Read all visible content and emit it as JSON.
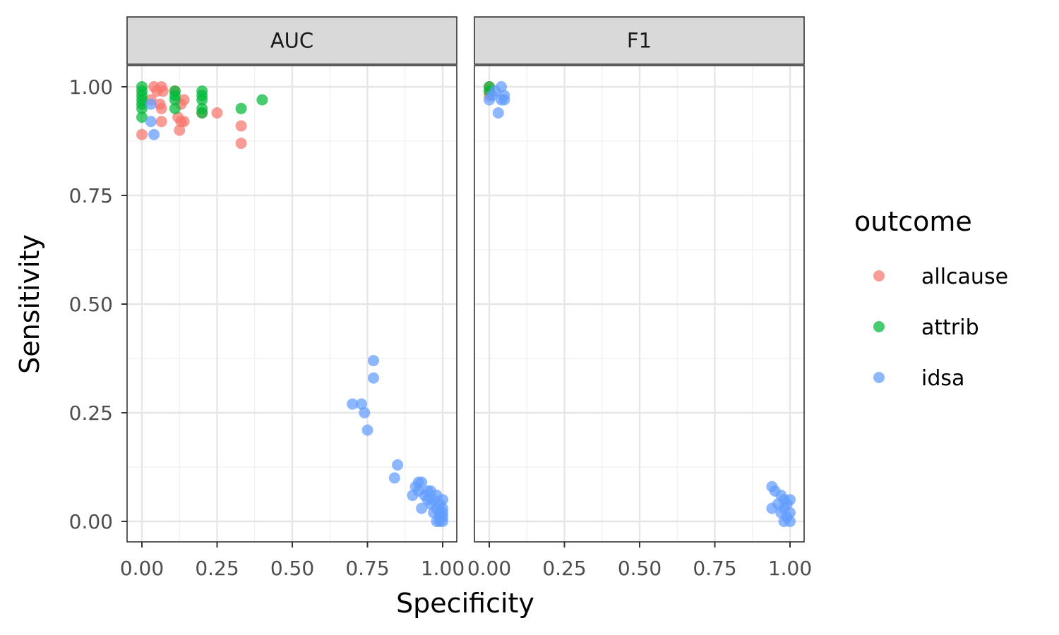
{
  "chart_data": {
    "type": "scatter",
    "xlabel": "Specificity",
    "ylabel": "Sensitivity",
    "xlim": [
      0,
      1
    ],
    "ylim": [
      0,
      1
    ],
    "x_ticks": [
      "0.00",
      "0.25",
      "0.50",
      "0.75",
      "1.00"
    ],
    "y_ticks": [
      "0.00",
      "0.25",
      "0.50",
      "0.75",
      "1.00"
    ],
    "tick_values": [
      0,
      0.25,
      0.5,
      0.75,
      1
    ],
    "grid": true,
    "legend": {
      "title": "outcome",
      "position": "right"
    },
    "series_styles": [
      {
        "name": "allcause",
        "color": "#F8766D"
      },
      {
        "name": "attrib",
        "color": "#00BA38"
      },
      {
        "name": "idsa",
        "color": "#619CFF"
      }
    ],
    "panels": [
      {
        "label": "AUC",
        "series": [
          {
            "name": "allcause",
            "points": [
              [
                0,
                0.89
              ],
              [
                0.03,
                0.97
              ],
              [
                0.04,
                1.0
              ],
              [
                0.05,
                0.99
              ],
              [
                0.06,
                0.96
              ],
              [
                0.065,
                0.92
              ],
              [
                0.065,
                0.95
              ],
              [
                0.065,
                1.0
              ],
              [
                0.07,
                0.99
              ],
              [
                0.11,
                0.99
              ],
              [
                0.12,
                0.93
              ],
              [
                0.125,
                0.9
              ],
              [
                0.13,
                0.92
              ],
              [
                0.13,
                0.96
              ],
              [
                0.14,
                0.92
              ],
              [
                0.14,
                0.97
              ],
              [
                0.2,
                0.94
              ],
              [
                0.25,
                0.94
              ],
              [
                0.33,
                0.91
              ],
              [
                0.33,
                0.87
              ]
            ]
          },
          {
            "name": "attrib",
            "points": [
              [
                0,
                0.93
              ],
              [
                0,
                0.95
              ],
              [
                0,
                0.96
              ],
              [
                0,
                0.97
              ],
              [
                0,
                0.98
              ],
              [
                0,
                0.99
              ],
              [
                0,
                1.0
              ],
              [
                0.11,
                0.95
              ],
              [
                0.11,
                0.97
              ],
              [
                0.11,
                0.98
              ],
              [
                0.11,
                0.99
              ],
              [
                0.2,
                0.94
              ],
              [
                0.2,
                0.95
              ],
              [
                0.2,
                0.97
              ],
              [
                0.2,
                0.98
              ],
              [
                0.2,
                0.99
              ],
              [
                0.33,
                0.95
              ],
              [
                0.4,
                0.97
              ]
            ]
          },
          {
            "name": "idsa",
            "points": [
              [
                0.03,
                0.92
              ],
              [
                0.04,
                0.89
              ],
              [
                0.03,
                0.96
              ],
              [
                0.7,
                0.27
              ],
              [
                0.73,
                0.27
              ],
              [
                0.74,
                0.25
              ],
              [
                0.75,
                0.21
              ],
              [
                0.77,
                0.37
              ],
              [
                0.77,
                0.33
              ],
              [
                0.84,
                0.1
              ],
              [
                0.85,
                0.13
              ],
              [
                0.9,
                0.06
              ],
              [
                0.91,
                0.08
              ],
              [
                0.92,
                0.07
              ],
              [
                0.92,
                0.09
              ],
              [
                0.93,
                0.03
              ],
              [
                0.93,
                0.09
              ],
              [
                0.94,
                0.06
              ],
              [
                0.95,
                0.05
              ],
              [
                0.95,
                0.07
              ],
              [
                0.96,
                0.04
              ],
              [
                0.96,
                0.07
              ],
              [
                0.97,
                0.02
              ],
              [
                0.97,
                0.05
              ],
              [
                0.98,
                0.0
              ],
              [
                0.98,
                0.03
              ],
              [
                0.98,
                0.06
              ],
              [
                0.99,
                0.0
              ],
              [
                0.99,
                0.01
              ],
              [
                0.99,
                0.02
              ],
              [
                0.99,
                0.04
              ],
              [
                1.0,
                0.0
              ],
              [
                1.0,
                0.01
              ],
              [
                1.0,
                0.02
              ],
              [
                1.0,
                0.03
              ],
              [
                1.0,
                0.05
              ]
            ]
          }
        ]
      },
      {
        "label": "F1",
        "series": [
          {
            "name": "allcause",
            "points": [
              [
                0,
                0.98
              ],
              [
                0,
                0.99
              ],
              [
                0,
                1.0
              ]
            ]
          },
          {
            "name": "attrib",
            "points": [
              [
                0,
                0.99
              ],
              [
                0,
                1.0
              ]
            ]
          },
          {
            "name": "idsa",
            "points": [
              [
                0,
                0.97
              ],
              [
                0.01,
                0.98
              ],
              [
                0.02,
                0.99
              ],
              [
                0.03,
                0.94
              ],
              [
                0.04,
                0.97
              ],
              [
                0.04,
                1.0
              ],
              [
                0.05,
                0.97
              ],
              [
                0.05,
                0.98
              ],
              [
                0.94,
                0.08
              ],
              [
                0.94,
                0.03
              ],
              [
                0.95,
                0.07
              ],
              [
                0.96,
                0.04
              ],
              [
                0.97,
                0.06
              ],
              [
                0.97,
                0.02
              ],
              [
                0.98,
                0.05
              ],
              [
                0.98,
                0.0
              ],
              [
                0.98,
                0.03
              ],
              [
                0.99,
                0.01
              ],
              [
                0.99,
                0.04
              ],
              [
                1.0,
                0.0
              ],
              [
                1.0,
                0.02
              ],
              [
                1.0,
                0.05
              ]
            ]
          }
        ]
      }
    ]
  }
}
